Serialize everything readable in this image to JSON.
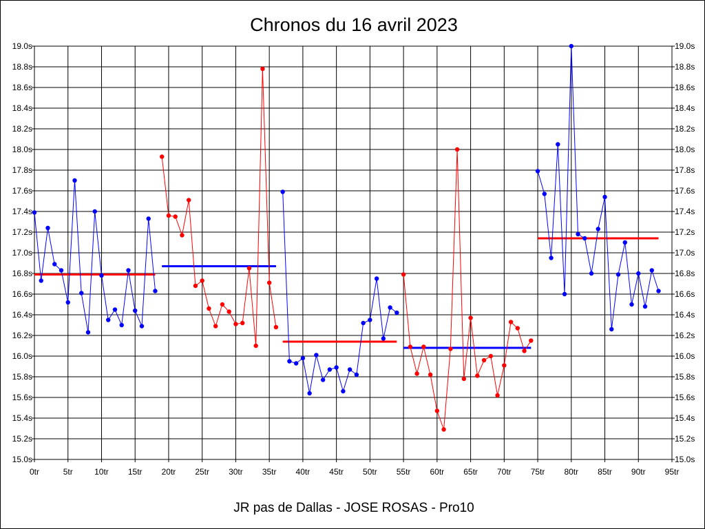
{
  "chart_data": {
    "type": "line",
    "title": "Chronos du 16 avril 2023",
    "xlabel": "JR pas de Dallas - JOSE ROSAS - Pro10",
    "ylabel": "",
    "xlim": [
      0,
      95
    ],
    "ylim": [
      15.0,
      19.0
    ],
    "grid": true,
    "x_tick_values": [
      0,
      5,
      10,
      15,
      20,
      25,
      30,
      35,
      40,
      45,
      50,
      55,
      60,
      65,
      70,
      75,
      80,
      85,
      90,
      95
    ],
    "x_tick_labels": [
      "0tr",
      "5tr",
      "10tr",
      "15tr",
      "20tr",
      "25tr",
      "30tr",
      "35tr",
      "40tr",
      "45tr",
      "50tr",
      "55tr",
      "60tr",
      "65tr",
      "70tr",
      "75tr",
      "80tr",
      "85tr",
      "90tr",
      "95tr"
    ],
    "y_tick_values": [
      15.0,
      15.2,
      15.4,
      15.6,
      15.8,
      16.0,
      16.2,
      16.4,
      16.6,
      16.8,
      17.0,
      17.2,
      17.4,
      17.6,
      17.8,
      18.0,
      18.2,
      18.4,
      18.6,
      18.8,
      19.0
    ],
    "y_tick_labels": [
      "15.0s",
      "15.2s",
      "15.4s",
      "15.6s",
      "15.8s",
      "16.0s",
      "16.2s",
      "16.4s",
      "16.6s",
      "16.8s",
      "17.0s",
      "17.2s",
      "17.4s",
      "17.6s",
      "17.8s",
      "18.0s",
      "18.2s",
      "18.4s",
      "18.6s",
      "18.8s",
      "19.0s"
    ],
    "series": [
      {
        "color": "#0000ff",
        "x": [
          0,
          1,
          2,
          3,
          4,
          5,
          6,
          7,
          8,
          9,
          10,
          11,
          12,
          13,
          14,
          15,
          16,
          17,
          18
        ],
        "y": [
          17.39,
          16.73,
          17.24,
          16.89,
          16.83,
          16.52,
          17.7,
          16.61,
          16.23,
          17.4,
          16.78,
          16.35,
          16.45,
          16.3,
          16.83,
          16.44,
          16.29,
          17.33,
          16.63
        ]
      },
      {
        "color": "#ff0000",
        "x": [
          19,
          20,
          21,
          22,
          23,
          24,
          25,
          26,
          27,
          28,
          29,
          30,
          31,
          32,
          33,
          34,
          35,
          36
        ],
        "y": [
          17.93,
          17.36,
          17.35,
          17.17,
          17.51,
          16.68,
          16.73,
          16.46,
          16.29,
          16.5,
          16.43,
          16.31,
          16.32,
          16.85,
          16.1,
          18.78,
          16.71,
          16.28
        ]
      },
      {
        "color": "#0000ff",
        "x": [
          37,
          38,
          39,
          40,
          41,
          42,
          43,
          44,
          45,
          46,
          47,
          48,
          49,
          50,
          51,
          52,
          53,
          54
        ],
        "y": [
          17.59,
          15.95,
          15.93,
          15.98,
          15.64,
          16.01,
          15.77,
          15.87,
          15.89,
          15.66,
          15.87,
          15.82,
          16.32,
          16.35,
          16.75,
          16.17,
          16.47,
          16.42
        ]
      },
      {
        "color": "#ff0000",
        "x": [
          55,
          56,
          57,
          58,
          59,
          60,
          61,
          62,
          63,
          64,
          65,
          66,
          67,
          68,
          69,
          70,
          71,
          72,
          73,
          74
        ],
        "y": [
          16.79,
          16.09,
          15.83,
          16.09,
          15.82,
          15.47,
          15.29,
          16.07,
          18.0,
          15.78,
          16.37,
          15.81,
          15.96,
          16.0,
          15.62,
          15.91,
          16.33,
          16.27,
          16.05,
          16.15
        ]
      },
      {
        "color": "#0000ff",
        "x": [
          75,
          76,
          77,
          78,
          79,
          80,
          81,
          82,
          83,
          84,
          85,
          86,
          87,
          88,
          89,
          90,
          91,
          92,
          93
        ],
        "y": [
          17.79,
          17.57,
          16.95,
          18.05,
          16.6,
          19.0,
          17.18,
          17.14,
          16.8,
          17.23,
          17.54,
          16.26,
          16.79,
          17.1,
          16.5,
          16.8,
          16.48,
          16.83,
          16.63
        ]
      }
    ],
    "averages": [
      {
        "color": "#ff0000",
        "x_start": 0,
        "x_end": 18,
        "y": 16.79
      },
      {
        "color": "#0000ff",
        "x_start": 19,
        "x_end": 36,
        "y": 16.87
      },
      {
        "color": "#ff0000",
        "x_start": 37,
        "x_end": 54,
        "y": 16.14
      },
      {
        "color": "#0000ff",
        "x_start": 55,
        "x_end": 74,
        "y": 16.08
      },
      {
        "color": "#ff0000",
        "x_start": 75,
        "x_end": 93,
        "y": 17.14
      }
    ]
  }
}
